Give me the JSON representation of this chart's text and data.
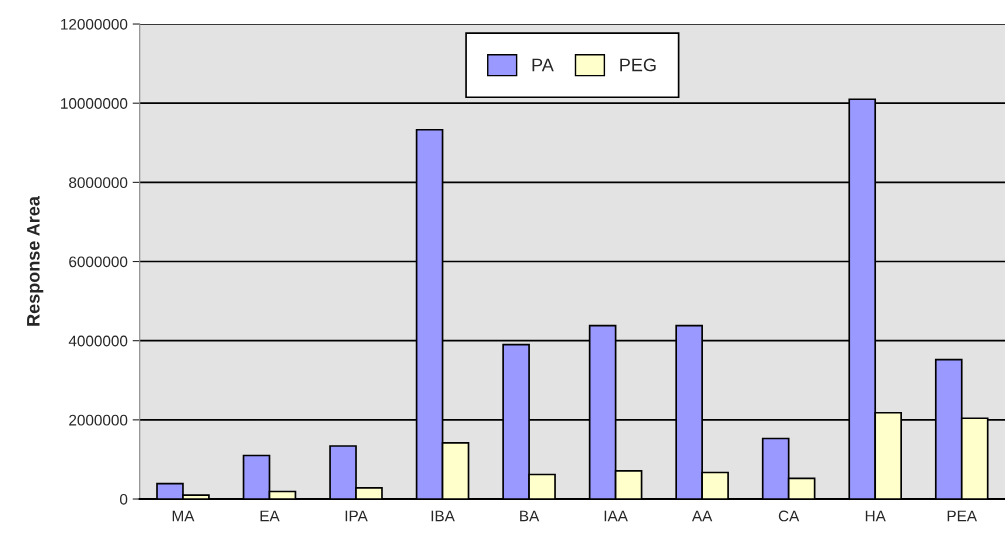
{
  "chart_data": {
    "type": "bar",
    "ylabel": "Response Area",
    "categories": [
      "MA",
      "EA",
      "IPA",
      "IBA",
      "BA",
      "IAA",
      "AA",
      "CA",
      "HA",
      "PEA"
    ],
    "series": [
      {
        "name": "PA",
        "color": "#9999ff",
        "values": [
          390000,
          1100000,
          1340000,
          9330000,
          3900000,
          4380000,
          4380000,
          1530000,
          10100000,
          3520000
        ]
      },
      {
        "name": "PEG",
        "color": "#ffffcc",
        "values": [
          100000,
          190000,
          280000,
          1420000,
          620000,
          710000,
          670000,
          520000,
          2180000,
          2040000
        ]
      }
    ],
    "ylim": [
      0,
      12000000
    ],
    "yticks": [
      0,
      2000000,
      4000000,
      6000000,
      8000000,
      10000000,
      12000000
    ],
    "grid": "y",
    "legend": "top"
  }
}
